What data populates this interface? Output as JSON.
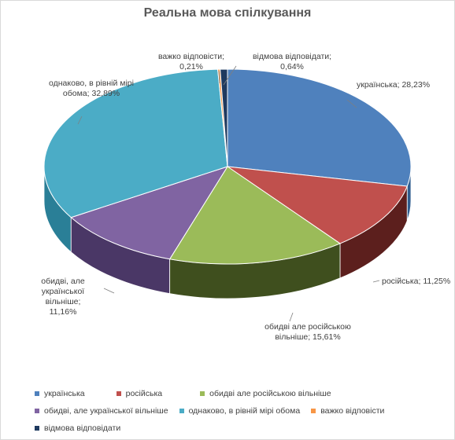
{
  "chart_data": {
    "type": "pie",
    "title": "Реальна мова спілкування",
    "slices": [
      {
        "name": "українська",
        "value": 28.23,
        "label": "українська; 28,23%",
        "color": "#4f81bd",
        "dark": "#2f5d8f"
      },
      {
        "name": "російська",
        "value": 11.25,
        "label": "російська; 11,25%",
        "color": "#c0504d",
        "dark": "#5c1f1d"
      },
      {
        "name": "обидві але російською вільніше",
        "value": 15.61,
        "label": "обидві але російською вільніше; 15,61%",
        "color": "#9bbb59",
        "dark": "#3f4f1e"
      },
      {
        "name": "обидві, але української вільніше",
        "value": 11.16,
        "label": "обидві, але української вільніше; 11,16%",
        "color": "#8064a2",
        "dark": "#4a3766"
      },
      {
        "name": "однаково, в рівній мірі обома",
        "value": 32.89,
        "label": "однаково, в рівній мірі обома; 32,89%",
        "color": "#4bacc6",
        "dark": "#2a7f97"
      },
      {
        "name": "важко відповісти",
        "value": 0.21,
        "label": "важко відповісти; 0,21%",
        "color": "#f79646",
        "dark": "#b86622"
      },
      {
        "name": "відмова відповідати",
        "value": 0.64,
        "label": "відмова відповідати; 0,64%",
        "color": "#1f3a5f",
        "dark": "#10203a"
      }
    ],
    "label_lines": {
      "s0": "українська; 28,23%",
      "s1": "російська; 11,25%",
      "s2a": "обидві але російською",
      "s2b": "вільніше; 15,61%",
      "s3a": "обидві, але",
      "s3b": "української вільніше;",
      "s3c": "11,16%",
      "s4a": "однаково, в рівній мірі",
      "s4b": "обома; 32,89%",
      "s5a": "важко відповісти;",
      "s5b": "0,21%",
      "s6a": "відмова відповідати;",
      "s6b": "0,64%"
    },
    "legend": {
      "row1": [
        "українська",
        "російська",
        "обидві але російською вільніше"
      ],
      "row2": [
        "обидві, але української вільніше",
        "однаково, в рівній мірі обома",
        "важко відповісти"
      ],
      "row3": [
        "відмова відповідати"
      ]
    }
  }
}
